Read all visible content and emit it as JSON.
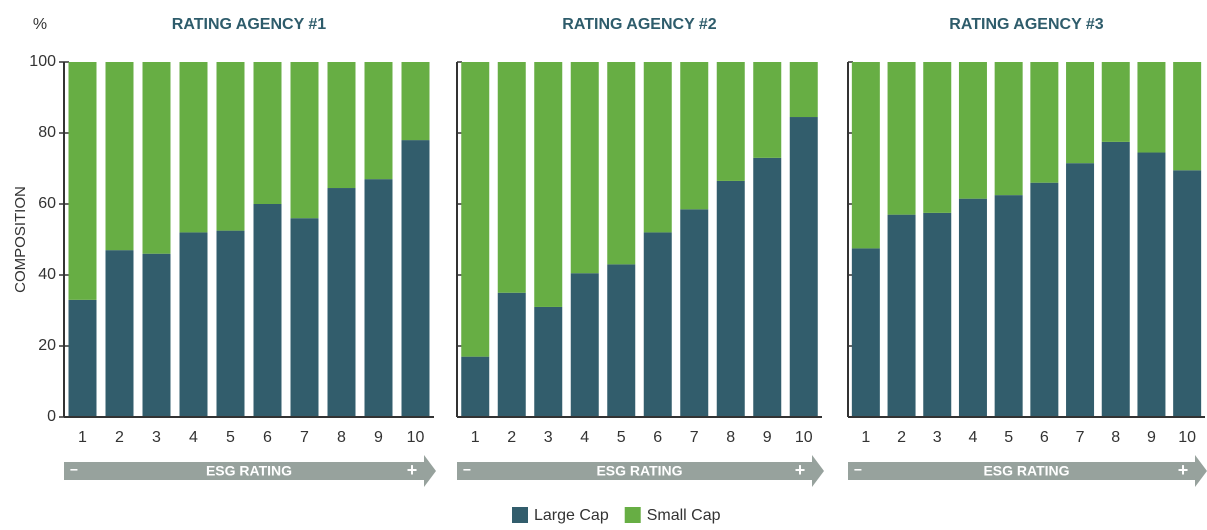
{
  "chart_data": [
    {
      "type": "bar",
      "stacked": true,
      "title": "RATING AGENCY #1",
      "y_label": "COMPOSITION",
      "y_unit": "%",
      "show_tick_labels": true,
      "x_label": "ESG RATING",
      "x_low": "−",
      "x_high": "+",
      "categories": [
        "1",
        "2",
        "3",
        "4",
        "5",
        "6",
        "7",
        "8",
        "9",
        "10"
      ],
      "series": [
        {
          "name": "Large Cap",
          "color": "#325d6c",
          "values": [
            33,
            47,
            46,
            52,
            52.5,
            60,
            56,
            64.5,
            67,
            78
          ]
        },
        {
          "name": "Small Cap",
          "color": "#67ae44",
          "values": [
            67,
            53,
            54,
            48,
            47.5,
            40,
            44,
            35.5,
            33,
            22
          ]
        }
      ],
      "ylim": [
        0,
        100
      ],
      "yticks": [
        0,
        20,
        40,
        60,
        80,
        100
      ]
    },
    {
      "type": "bar",
      "stacked": true,
      "title": "RATING AGENCY #2",
      "show_tick_labels": false,
      "x_label": "ESG RATING",
      "x_low": "−",
      "x_high": "+",
      "categories": [
        "1",
        "2",
        "3",
        "4",
        "5",
        "6",
        "7",
        "8",
        "9",
        "10"
      ],
      "series": [
        {
          "name": "Large Cap",
          "color": "#325d6c",
          "values": [
            17,
            35,
            31,
            40.5,
            43,
            52,
            58.5,
            66.5,
            73,
            84.5
          ]
        },
        {
          "name": "Small Cap",
          "color": "#67ae44",
          "values": [
            83,
            65,
            69,
            59.5,
            57,
            48,
            41.5,
            33.5,
            27,
            15.5
          ]
        }
      ],
      "ylim": [
        0,
        100
      ],
      "yticks": [
        0,
        20,
        40,
        60,
        80,
        100
      ]
    },
    {
      "type": "bar",
      "stacked": true,
      "title": "RATING AGENCY #3",
      "show_tick_labels": false,
      "x_label": "ESG RATING",
      "x_low": "−",
      "x_high": "+",
      "categories": [
        "1",
        "2",
        "3",
        "4",
        "5",
        "6",
        "7",
        "8",
        "9",
        "10"
      ],
      "series": [
        {
          "name": "Large Cap",
          "color": "#325d6c",
          "values": [
            47.5,
            57,
            57.5,
            61.5,
            62.5,
            66,
            71.5,
            77.5,
            74.5,
            69.5
          ]
        },
        {
          "name": "Small Cap",
          "color": "#67ae44",
          "values": [
            52.5,
            43,
            42.5,
            38.5,
            37.5,
            34,
            28.5,
            22.5,
            25.5,
            30.5
          ]
        }
      ],
      "ylim": [
        0,
        100
      ],
      "yticks": [
        0,
        20,
        40,
        60,
        80,
        100
      ]
    }
  ]
}
